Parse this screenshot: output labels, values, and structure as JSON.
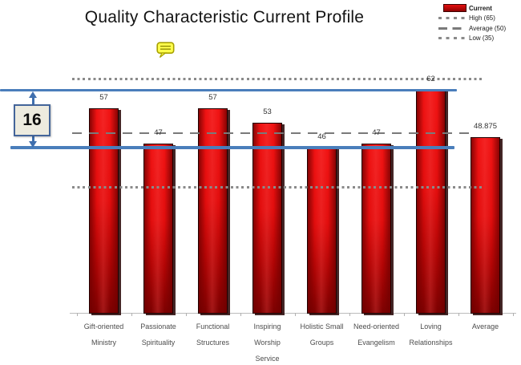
{
  "title": "Quality Characteristic Current Profile",
  "legend": {
    "position": "top-right",
    "items": [
      {
        "label": "Current",
        "type": "bar-swatch",
        "color": "#cc0404"
      },
      {
        "label": "High (65)",
        "type": "dotted-line",
        "color": "#8a8a8a"
      },
      {
        "label": "Average (50)",
        "type": "dashed-line",
        "color": "#7a7a7a"
      },
      {
        "label": "Low (35)",
        "type": "dotted-line",
        "color": "#8a8a8a"
      }
    ]
  },
  "annotation": {
    "range_label": "16"
  },
  "comment_icon": {
    "name": "comment-icon",
    "color": "#ffff4d"
  },
  "chart_data": {
    "type": "bar",
    "title": "Quality Characteristic Current Profile",
    "series_name": "Current",
    "categories": [
      "Gift-oriented Ministry",
      "Passionate Spirituality",
      "Functional Structures",
      "Inspiring Worship Service",
      "Holistic Small Groups",
      "Need-oriented Evangelism",
      "Loving Relationships",
      "Average"
    ],
    "category_label_lines": [
      [
        "Gift-oriented",
        "Ministry"
      ],
      [
        "Passionate",
        "Spirituality"
      ],
      [
        "Functional",
        "Structures"
      ],
      [
        "Inspiring",
        "Worship",
        "Service"
      ],
      [
        "Holistic Small",
        "Groups"
      ],
      [
        "Need-oriented",
        "Evangelism"
      ],
      [
        "Loving",
        "Relationships"
      ],
      [
        "Average"
      ]
    ],
    "values": [
      57,
      47,
      57,
      53,
      46,
      47,
      62,
      48.875
    ],
    "value_labels": [
      "57",
      "47",
      "57",
      "53",
      "46",
      "47",
      "62",
      "48.875"
    ],
    "reference_lines": [
      {
        "name": "High",
        "label": "High (65)",
        "value": 65,
        "style": "dotted"
      },
      {
        "name": "Average",
        "label": "Average (50)",
        "value": 50,
        "style": "dashed"
      },
      {
        "name": "Low",
        "label": "Low (35)",
        "value": 35,
        "style": "dotted"
      }
    ],
    "range_annotation": {
      "label": "16",
      "from": 46,
      "to": 62
    },
    "ylim": [
      0,
      66
    ],
    "y_axis_visible": false,
    "grid": false,
    "colors": {
      "bar": "#dd0808",
      "bar_border": "#1a0000",
      "highlight_blue": "#4a7ebb",
      "reference_gray": "#8a8a8a",
      "axis_gray": "#bcbcbc"
    }
  }
}
